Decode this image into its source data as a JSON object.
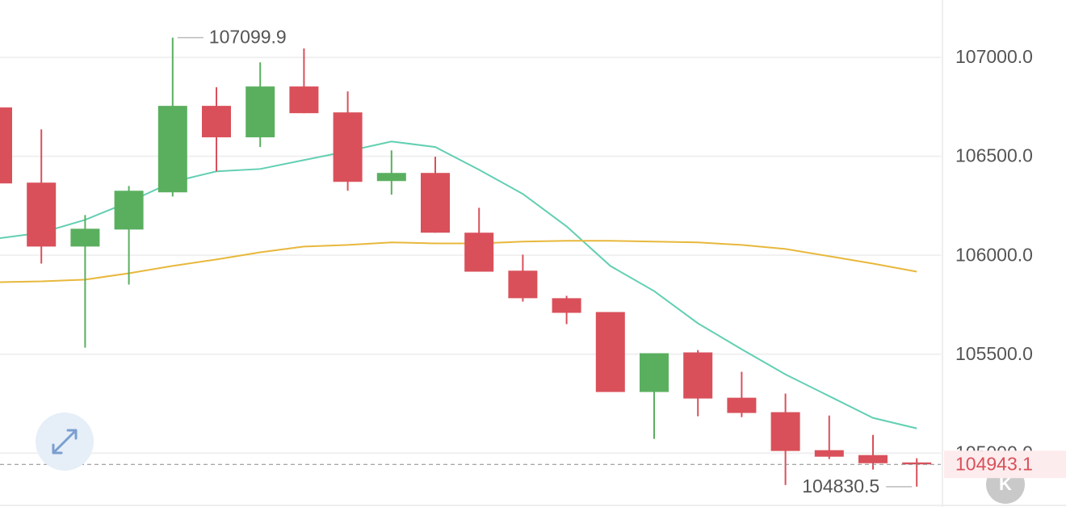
{
  "chart_data": {
    "type": "candlestick",
    "open": [
      106747,
      106367,
      106044,
      106130,
      106318,
      106755,
      106596,
      106853,
      106722,
      106375,
      106416,
      106114,
      105922,
      105783,
      105713,
      105309,
      105509,
      105280,
      105207,
      105015,
      104990,
      104953
    ],
    "high": [
      106747,
      106636,
      106203,
      106350,
      107099.9,
      106849,
      106975,
      107045,
      106828,
      106530,
      106498,
      106240,
      106003,
      105795,
      105713,
      105505,
      105521,
      105411,
      105301,
      105190,
      105092,
      104974
    ],
    "low": [
      106363,
      105958,
      105533,
      105852,
      106297,
      106424,
      106547,
      106718,
      106326,
      106306,
      106114,
      105917,
      105766,
      105652,
      105309,
      105072,
      105186,
      105182,
      104839,
      104970,
      104917,
      104830.5
    ],
    "close": [
      106363,
      106044,
      106134,
      106326,
      106755,
      106596,
      106853,
      106718,
      106371,
      106416,
      106114,
      105917,
      105783,
      105709,
      105309,
      105505,
      105276,
      105203,
      105011,
      104982,
      104949,
      104943.1
    ],
    "up_color": "#5aaf5f",
    "down_color": "#d9505a",
    "overlays": [
      {
        "color": "#62cfb2",
        "values": [
          106085,
          106114,
          106179,
          106269,
          106371,
          106424,
          106436,
          106481,
          106526,
          106575,
          106547,
          106432,
          106310,
          106146,
          105946,
          105819,
          105656,
          105525,
          105398,
          105288,
          105178,
          105125
        ]
      },
      {
        "color": "#e8b83c",
        "values": [
          105864,
          105868,
          105877,
          105909,
          105946,
          105979,
          106015,
          106044,
          106052,
          106065,
          106060,
          106060,
          106069,
          106073,
          106073,
          106069,
          106065,
          106052,
          106032,
          105995,
          105958,
          105917
        ]
      }
    ],
    "ylim": [
      104740,
      107290
    ],
    "yticks": [
      {
        "value": 105000,
        "label": "105000.0"
      },
      {
        "value": 105500,
        "label": "105500.0"
      },
      {
        "value": 106000,
        "label": "106000.0"
      },
      {
        "value": 106500,
        "label": "106500.0"
      },
      {
        "value": 107000,
        "label": "107000.0"
      }
    ],
    "grid": true
  },
  "corner_button": "K"
}
